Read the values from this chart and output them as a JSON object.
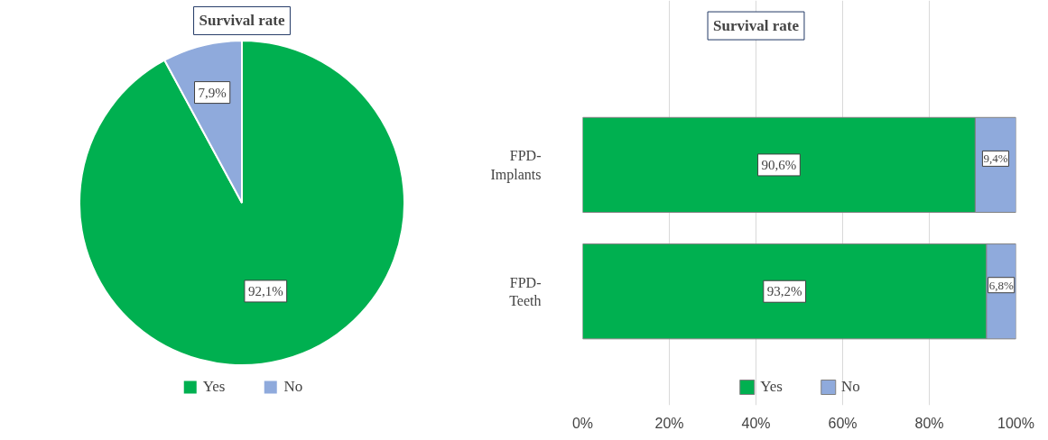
{
  "chart_data": [
    {
      "type": "pie",
      "title": "Survival rate",
      "categories": [
        "Yes",
        "No"
      ],
      "values": [
        92.1,
        7.9
      ],
      "colors": [
        "#00b050",
        "#8faadc"
      ],
      "value_labels": [
        "92,1%",
        "7,9%"
      ],
      "legend": "bottom"
    },
    {
      "type": "bar",
      "title": "Survival rate",
      "orientation": "horizontal",
      "stacked": true,
      "categories": [
        "FPD-Implants",
        "FPD-Teeth"
      ],
      "series": [
        {
          "name": "Yes",
          "color": "#00b050",
          "values": [
            90.6,
            93.2
          ],
          "value_labels": [
            "90,6%",
            "93,2%"
          ]
        },
        {
          "name": "No",
          "color": "#8faadc",
          "values": [
            9.4,
            6.8
          ],
          "value_labels": [
            "9,4%",
            "6,8%"
          ]
        }
      ],
      "xlim": [
        0,
        100
      ],
      "xticks": [
        {
          "value": 0,
          "label": "0%"
        },
        {
          "value": 20,
          "label": "20%"
        },
        {
          "value": 40,
          "label": "40%"
        },
        {
          "value": 60,
          "label": "60%"
        },
        {
          "value": 80,
          "label": "80%"
        },
        {
          "value": 100,
          "label": "100%"
        }
      ],
      "grid": "x",
      "legend": "bottom"
    }
  ]
}
